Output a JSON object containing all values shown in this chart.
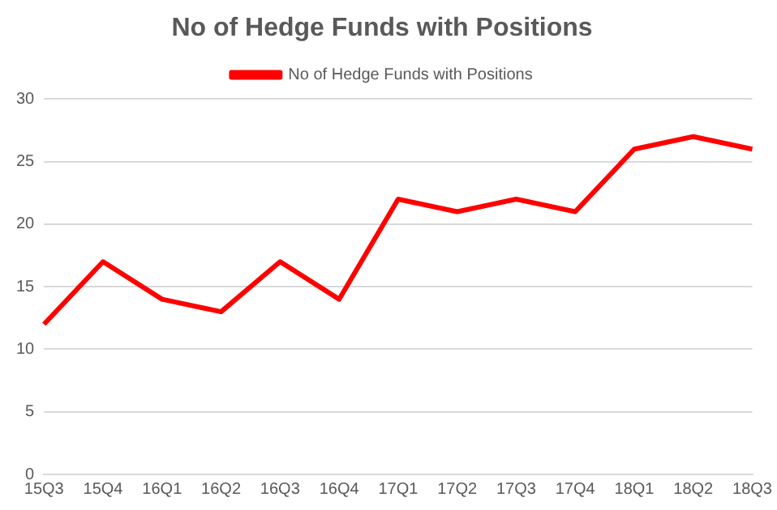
{
  "chart_data": {
    "type": "line",
    "title": "No of Hedge Funds with Positions",
    "categories": [
      "15Q3",
      "15Q4",
      "16Q1",
      "16Q2",
      "16Q3",
      "16Q4",
      "17Q1",
      "17Q2",
      "17Q3",
      "17Q4",
      "18Q1",
      "18Q2",
      "18Q3"
    ],
    "series": [
      {
        "name": "No of Hedge Funds with Positions",
        "color": "#ff0000",
        "values": [
          12,
          17,
          14,
          13,
          17,
          14,
          22,
          21,
          22,
          21,
          26,
          27,
          26
        ]
      }
    ],
    "ylim": [
      0,
      30
    ],
    "yticks": [
      0,
      5,
      10,
      15,
      20,
      25,
      30
    ],
    "grid": "y",
    "legend": "top",
    "marker": "none"
  }
}
